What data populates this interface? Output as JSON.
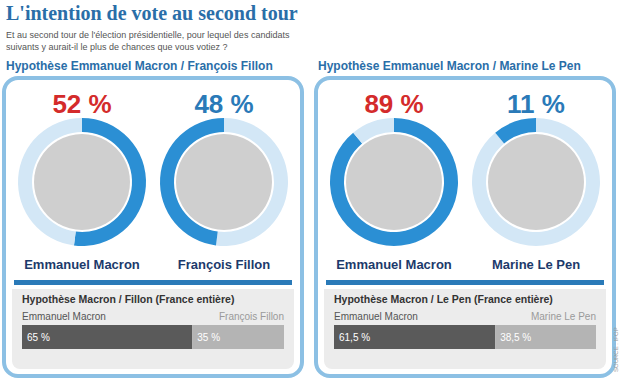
{
  "title": "L'intention de vote au second tour",
  "subtitle": "Et au second tour de l'élection présidentielle, pour lequel des candidats suivants y aurait-il le plus de chances que vous votiez ?",
  "source": "SOURCE : IFOP",
  "chart_data": [
    {
      "type": "pie",
      "title": "Hypothèse Emmanuel Macron / François Fillon",
      "categories": [
        "Emmanuel Macron",
        "François Fillon"
      ],
      "values": [
        52,
        48
      ],
      "value_labels": [
        "52 %",
        "48 %"
      ],
      "color": "#2b8fd4",
      "data_labels": true
    },
    {
      "type": "pie",
      "title": "Hypothèse Emmanuel Macron / Marine Le Pen",
      "categories": [
        "Emmanuel Macron",
        "Marine Le Pen"
      ],
      "values": [
        89,
        11
      ],
      "value_labels": [
        "89 %",
        "11 %"
      ],
      "color": "#2b8fd4",
      "data_labels": true
    },
    {
      "type": "bar",
      "title": "Hypothèse Macron / Fillon (France entière)",
      "orientation": "horizontal",
      "stacked": true,
      "data_labels": true,
      "tick_labels": false,
      "categories": [
        null
      ],
      "xlim": [
        0,
        100
      ],
      "series": [
        {
          "name": "Emmanuel Macron",
          "color": "#5a5a5a",
          "values": [
            65
          ],
          "value_labels": [
            "65 %"
          ]
        },
        {
          "name": "François Fillon",
          "color": "#b4b4b4",
          "values": [
            35
          ],
          "value_labels": [
            "35 %"
          ]
        }
      ]
    },
    {
      "type": "bar",
      "title": "Hypothèse Macron / Le Pen (France entière)",
      "orientation": "horizontal",
      "stacked": true,
      "data_labels": true,
      "tick_labels": false,
      "categories": [
        null
      ],
      "xlim": [
        0,
        100
      ],
      "series": [
        {
          "name": "Emmanuel Macron",
          "color": "#5a5a5a",
          "values": [
            61.5
          ],
          "value_labels": [
            "61,5 %"
          ]
        },
        {
          "name": "Marine Le Pen",
          "color": "#b4b4b4",
          "values": [
            38.5
          ],
          "value_labels": [
            "38,5 %"
          ]
        }
      ]
    }
  ]
}
